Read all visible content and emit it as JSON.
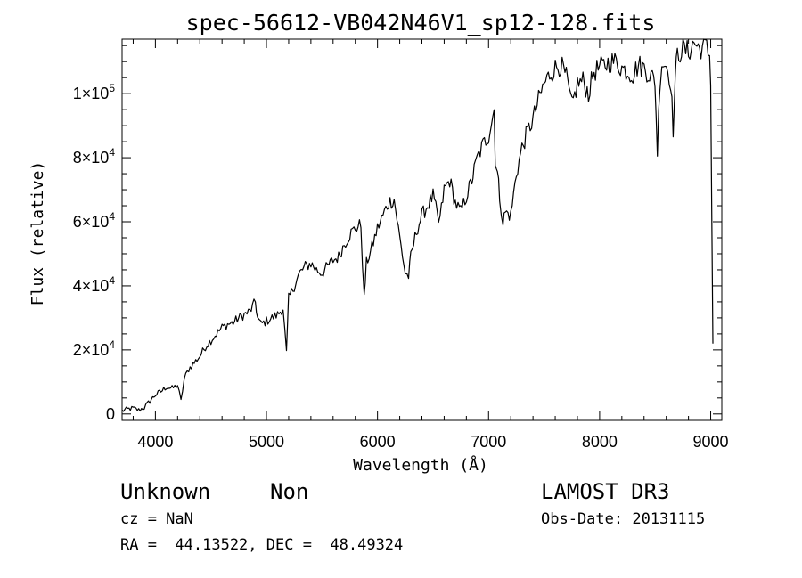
{
  "chart_data": {
    "type": "line",
    "title": "spec-56612-VB042N46V1_sp12-128.fits",
    "xlabel": "Wavelength (Å)",
    "ylabel": "Flux (relative)",
    "xlim": [
      3700,
      9100
    ],
    "ylim": [
      -2000,
      117000
    ],
    "x_ticks": [
      4000,
      5000,
      6000,
      7000,
      8000,
      9000
    ],
    "x_tick_labels": [
      "4000",
      "5000",
      "6000",
      "7000",
      "8000",
      "9000"
    ],
    "y_ticks": [
      0,
      20000,
      40000,
      60000,
      80000,
      100000
    ],
    "y_tick_labels": [
      {
        "mant": "0",
        "exp": ""
      },
      {
        "mant": "2×10",
        "exp": "4"
      },
      {
        "mant": "4×10",
        "exp": "4"
      },
      {
        "mant": "6×10",
        "exp": "4"
      },
      {
        "mant": "8×10",
        "exp": "4"
      },
      {
        "mant": "1×10",
        "exp": "5"
      }
    ],
    "series": [
      {
        "name": "flux",
        "x": [
          3700,
          3750,
          3800,
          3850,
          3900,
          3950,
          4000,
          4050,
          4100,
          4150,
          4200,
          4230,
          4260,
          4300,
          4350,
          4400,
          4450,
          4500,
          4550,
          4600,
          4650,
          4700,
          4750,
          4800,
          4850,
          4900,
          4920,
          4950,
          5000,
          5050,
          5100,
          5150,
          5180,
          5200,
          5250,
          5300,
          5350,
          5400,
          5450,
          5500,
          5550,
          5600,
          5650,
          5700,
          5750,
          5800,
          5850,
          5880,
          5900,
          5950,
          6000,
          6050,
          6100,
          6150,
          6200,
          6250,
          6280,
          6300,
          6350,
          6400,
          6450,
          6500,
          6550,
          6563,
          6600,
          6650,
          6700,
          6750,
          6800,
          6850,
          6870,
          6900,
          6950,
          7000,
          7050,
          7060,
          7080,
          7100,
          7130,
          7150,
          7200,
          7250,
          7300,
          7350,
          7400,
          7450,
          7500,
          7550,
          7600,
          7650,
          7700,
          7750,
          7800,
          7850,
          7900,
          7950,
          8000,
          8050,
          8100,
          8150,
          8200,
          8250,
          8300,
          8350,
          8400,
          8450,
          8498,
          8520,
          8542,
          8560,
          8600,
          8640,
          8662,
          8680,
          8700,
          8750,
          8800,
          8850,
          8900,
          8950,
          8990,
          9000,
          9010,
          9020
        ],
        "y": [
          1000,
          1500,
          1800,
          1200,
          2000,
          4000,
          6000,
          7000,
          8500,
          8000,
          9000,
          4000,
          11000,
          14000,
          16000,
          18000,
          21000,
          23000,
          25000,
          27000,
          28000,
          28500,
          30000,
          31000,
          32000,
          35000,
          30000,
          28000,
          29000,
          30000,
          31000,
          33000,
          19000,
          36000,
          40000,
          44000,
          46000,
          47000,
          45000,
          44000,
          46000,
          48000,
          49000,
          53000,
          56000,
          58000,
          59000,
          36000,
          47000,
          52000,
          58000,
          62000,
          66000,
          67000,
          55000,
          44000,
          43000,
          49000,
          57000,
          62000,
          65000,
          68000,
          60000,
          61000,
          70000,
          73000,
          66000,
          63000,
          68000,
          73000,
          76000,
          80000,
          84000,
          87000,
          95000,
          80000,
          75000,
          68000,
          60000,
          63000,
          62000,
          75000,
          83000,
          88000,
          92000,
          98000,
          103000,
          106000,
          108000,
          109000,
          105000,
          96000,
          103000,
          104000,
          100000,
          107000,
          108000,
          109000,
          110000,
          110000,
          108000,
          107000,
          106000,
          109000,
          108000,
          106000,
          104000,
          82000,
          104000,
          110000,
          109000,
          104000,
          89000,
          105000,
          112000,
          114000,
          113000,
          116000,
          114000,
          115000,
          112000,
          105000,
          60000,
          22000
        ]
      }
    ]
  },
  "footer": {
    "object_name": "Unknown",
    "object_type": "Non",
    "survey": "LAMOST DR3",
    "redshift": "cz = NaN",
    "obs_date": "Obs-Date: 20131115",
    "coords": "RA =  44.13522, DEC =  48.49324"
  }
}
